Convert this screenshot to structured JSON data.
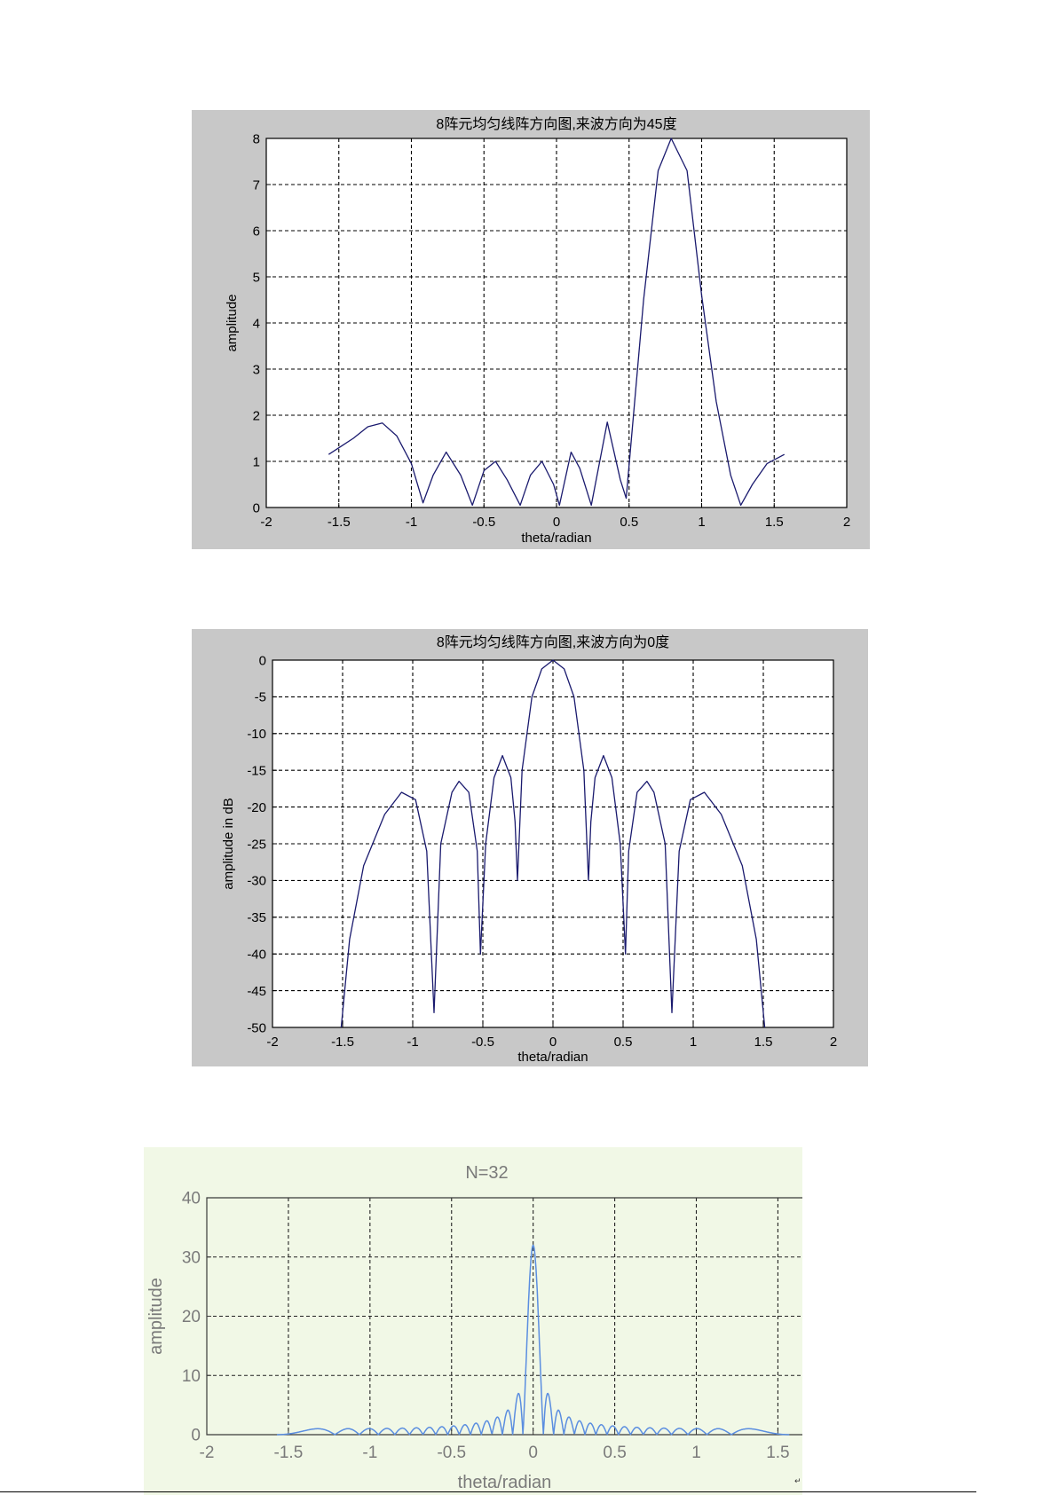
{
  "chart_data": [
    {
      "type": "line",
      "title": "8阵元均匀线阵方向图,来波方向为45度",
      "xlabel": "theta/radian",
      "ylabel": "amplitude",
      "xlim": [
        -2,
        2
      ],
      "ylim": [
        0,
        8
      ],
      "xticks": [
        -2,
        -1.5,
        -1,
        -0.5,
        0,
        0.5,
        1,
        1.5,
        2
      ],
      "yticks": [
        0,
        1,
        2,
        3,
        4,
        5,
        6,
        7,
        8
      ],
      "grid": true,
      "theta_range": [
        -1.5708,
        1.5708
      ],
      "series": [
        {
          "x": [
            -1.57,
            -1.4,
            -1.3,
            -1.2,
            -1.1,
            -1.0,
            -0.92,
            -0.85,
            -0.76,
            -0.66,
            -0.58,
            -0.5,
            -0.42,
            -0.34,
            -0.25,
            -0.18,
            -0.1,
            -0.02,
            0.02,
            0.1,
            0.16,
            0.24,
            0.35,
            0.44,
            0.48,
            0.6,
            0.7,
            0.79,
            0.9,
            1.0,
            1.1,
            1.2,
            1.27,
            1.35,
            1.45,
            1.57
          ],
          "y": [
            1.15,
            1.5,
            1.75,
            1.83,
            1.55,
            0.95,
            0.1,
            0.7,
            1.2,
            0.7,
            0.05,
            0.8,
            1.0,
            0.6,
            0.05,
            0.7,
            1.0,
            0.5,
            0.05,
            1.2,
            0.85,
            0.05,
            1.85,
            0.6,
            0.2,
            4.5,
            7.3,
            8.0,
            7.3,
            4.6,
            2.3,
            0.7,
            0.05,
            0.5,
            0.95,
            1.15
          ]
        }
      ]
    },
    {
      "type": "line",
      "title": "8阵元均匀线阵方向图,来波方向为0度",
      "xlabel": "theta/radian",
      "ylabel": "amplitude in dB",
      "xlim": [
        -2,
        2
      ],
      "ylim": [
        -50,
        0
      ],
      "xticks": [
        -2,
        -1.5,
        -1,
        -0.5,
        0,
        0.5,
        1,
        1.5,
        2
      ],
      "yticks": [
        0,
        -5,
        -10,
        -15,
        -20,
        -25,
        -30,
        -35,
        -40,
        -45,
        -50
      ],
      "grid": true,
      "series": [
        {
          "x": [
            -1.51,
            -1.45,
            -1.35,
            -1.2,
            -1.08,
            -0.98,
            -0.9,
            -0.848,
            -0.8,
            -0.72,
            -0.67,
            -0.6,
            -0.54,
            -0.517,
            -0.48,
            -0.42,
            -0.36,
            -0.3,
            -0.27,
            -0.253,
            -0.22,
            -0.15,
            -0.08,
            0,
            0.08,
            0.15,
            0.22,
            0.253,
            0.27,
            0.3,
            0.36,
            0.42,
            0.48,
            0.517,
            0.54,
            0.6,
            0.67,
            0.72,
            0.8,
            0.848,
            0.9,
            0.98,
            1.08,
            1.2,
            1.35,
            1.45,
            1.51
          ],
          "y": [
            -50,
            -38,
            -28,
            -21,
            -18,
            -19,
            -26,
            -48,
            -25,
            -18,
            -16.5,
            -18,
            -26,
            -40,
            -25,
            -16,
            -13,
            -16,
            -22,
            -30,
            -15,
            -5,
            -1.2,
            0,
            -1.2,
            -5,
            -15,
            -30,
            -22,
            -16,
            -13,
            -16,
            -25,
            -40,
            -26,
            -18,
            -16.5,
            -18,
            -25,
            -48,
            -26,
            -19,
            -18,
            -21,
            -28,
            -38,
            -50
          ]
        }
      ]
    },
    {
      "type": "line",
      "title": "N=32",
      "xlabel": "theta/radian",
      "ylabel": "amplitude",
      "xlim": [
        -2,
        1.65
      ],
      "ylim": [
        0,
        40
      ],
      "xticks": [
        -2,
        -1.5,
        -1,
        -0.5,
        0,
        0.5,
        1,
        1.5
      ],
      "yticks": [
        0,
        10,
        20,
        30,
        40
      ],
      "grid": true,
      "series": [
        {
          "N": 32,
          "x_range": [
            -1.57,
            1.57
          ],
          "peak": 32
        }
      ]
    }
  ],
  "page": {
    "footer_mark": "↵"
  }
}
